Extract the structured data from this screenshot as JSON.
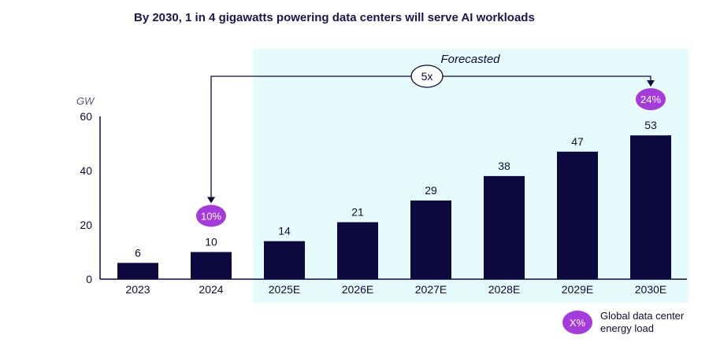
{
  "chart_data": {
    "type": "bar",
    "title": "By 2030, 1 in 4 gigawatts powering data centers will serve AI workloads",
    "ylabel": "GW",
    "categories": [
      "2023",
      "2024",
      "2025E",
      "2026E",
      "2027E",
      "2028E",
      "2029E",
      "2030E"
    ],
    "values": [
      6,
      10,
      14,
      21,
      29,
      38,
      47,
      53
    ],
    "data_labels": [
      "6",
      "10",
      "14",
      "21",
      "29",
      "38",
      "47",
      "53"
    ],
    "ylim": [
      0,
      60
    ],
    "yticks": [
      "0",
      "20",
      "40",
      "60"
    ],
    "grid": false,
    "forecast_label": "Forecasted",
    "forecast_start_category": "2025E",
    "growth_multiplier": "5x",
    "badges": [
      {
        "category": "2024",
        "text": "10%"
      },
      {
        "category": "2030E",
        "text": "24%"
      }
    ],
    "legend": {
      "symbol": "X%",
      "label": "Global data center energy load"
    },
    "colors": {
      "bar": "#0d0940",
      "forecast_bg": "#e6fbfb",
      "badge": "#a63bdb",
      "axis": "#0d0a3a"
    }
  }
}
